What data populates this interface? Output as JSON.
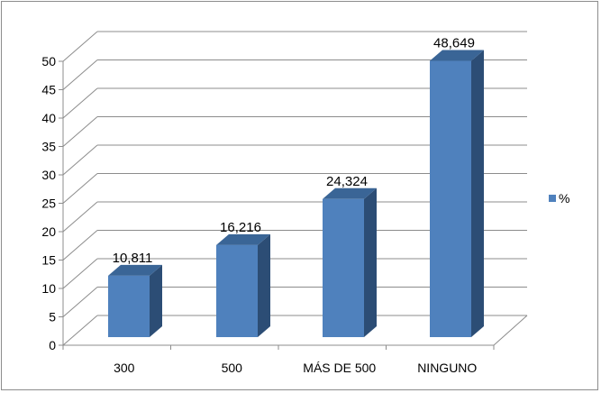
{
  "chart_data": {
    "type": "bar",
    "categories": [
      "300",
      "500",
      "MÁS DE 500",
      "NINGUNO"
    ],
    "series": [
      {
        "name": "%",
        "values": [
          10.811,
          16.216,
          24.324,
          48.649
        ]
      }
    ],
    "data_labels": [
      "10,811",
      "16,216",
      "24,324",
      "48,649"
    ],
    "ylim": [
      0,
      50
    ],
    "yticks": [
      "0",
      "5",
      "10",
      "15",
      "20",
      "25",
      "30",
      "35",
      "40",
      "45",
      "50"
    ],
    "title": "",
    "xlabel": "",
    "ylabel": "",
    "grid": true,
    "legend_position": "right",
    "bar_color": "#4f81bd"
  }
}
